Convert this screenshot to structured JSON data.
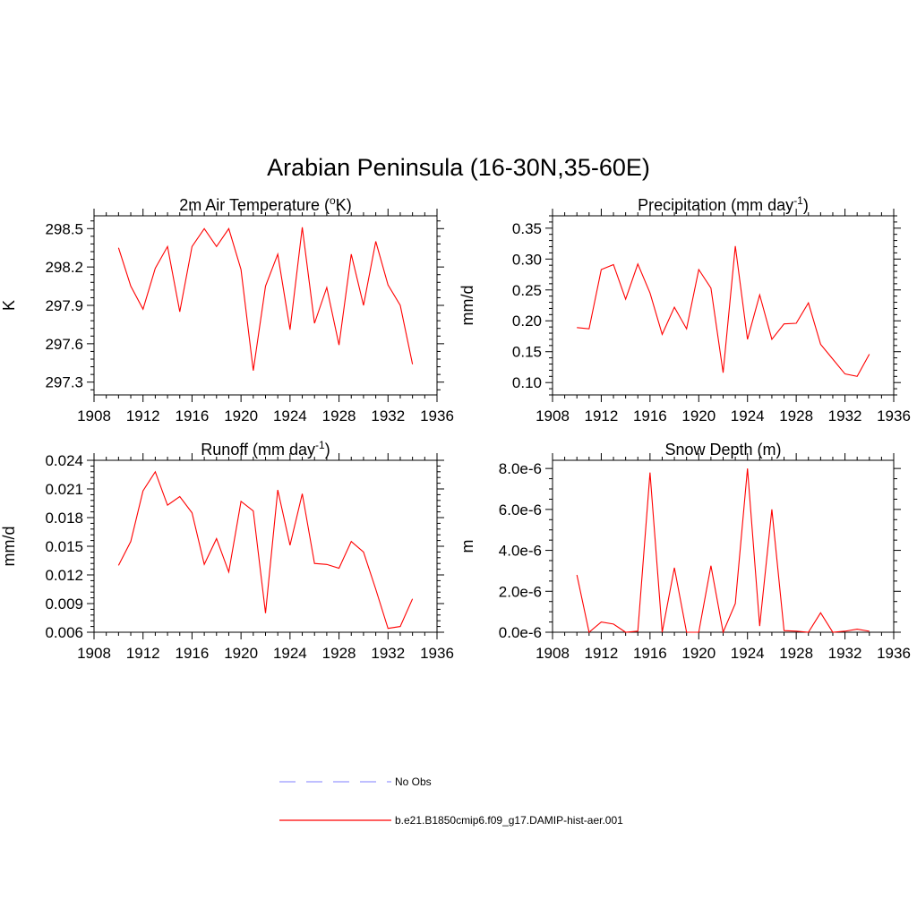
{
  "figure": {
    "title": "Arabian Peninsula (16-30N,35-60E)"
  },
  "legend": [
    {
      "label": "No Obs",
      "color": "#9999ff",
      "dash": true
    },
    {
      "label": "b.e21.B1850cmip6.f09_g17.DAMIP-hist-aer.001",
      "color": "#ff0000",
      "dash": false
    }
  ],
  "chart_data": [
    {
      "type": "line",
      "title_main": "2m Air Temperature (",
      "title_sup": "o",
      "title_end": "K)",
      "ylabel": "K",
      "xlim": [
        1908,
        1936
      ],
      "ylim": [
        297.2,
        298.6
      ],
      "xticks": [
        1908,
        1912,
        1916,
        1920,
        1924,
        1928,
        1932,
        1936
      ],
      "yticks": [
        297.3,
        297.6,
        297.9,
        298.2,
        298.5
      ],
      "ytick_labels": [
        "297.3",
        "297.6",
        "297.9",
        "298.2",
        "298.5"
      ],
      "yminor": 5,
      "color": "#ff0000",
      "x": [
        1910,
        1911,
        1912,
        1913,
        1914,
        1915,
        1916,
        1917,
        1918,
        1919,
        1920,
        1921,
        1922,
        1923,
        1924,
        1925,
        1926,
        1927,
        1928,
        1929,
        1930,
        1931,
        1932,
        1933,
        1934
      ],
      "y": [
        298.35,
        298.05,
        297.87,
        298.19,
        298.36,
        297.85,
        298.36,
        298.5,
        298.36,
        298.5,
        298.18,
        297.39,
        298.05,
        298.3,
        297.71,
        298.51,
        297.76,
        298.04,
        297.59,
        298.3,
        297.9,
        298.4,
        298.06,
        297.9,
        297.44
      ]
    },
    {
      "type": "line",
      "title_main": "Precipitation (mm day",
      "title_sup": "-1",
      "title_end": ")",
      "ylabel": "mm/d",
      "xlim": [
        1908,
        1936
      ],
      "ylim": [
        0.08,
        0.37
      ],
      "xticks": [
        1908,
        1912,
        1916,
        1920,
        1924,
        1928,
        1932,
        1936
      ],
      "yticks": [
        0.1,
        0.15,
        0.2,
        0.25,
        0.3,
        0.35
      ],
      "ytick_labels": [
        "0.10",
        "0.15",
        "0.20",
        "0.25",
        "0.30",
        "0.35"
      ],
      "yminor": 5,
      "color": "#ff0000",
      "x": [
        1910,
        1911,
        1912,
        1913,
        1914,
        1915,
        1916,
        1917,
        1918,
        1919,
        1920,
        1921,
        1922,
        1923,
        1924,
        1925,
        1926,
        1927,
        1928,
        1929,
        1930,
        1931,
        1932,
        1933,
        1934
      ],
      "y": [
        0.189,
        0.187,
        0.283,
        0.291,
        0.235,
        0.292,
        0.245,
        0.178,
        0.222,
        0.187,
        0.283,
        0.253,
        0.116,
        0.321,
        0.17,
        0.242,
        0.17,
        0.195,
        0.196,
        0.229,
        0.162,
        0.138,
        0.114,
        0.11,
        0.146
      ]
    },
    {
      "type": "line",
      "title_main": "Runoff (mm day",
      "title_sup": "-1",
      "title_end": ")",
      "ylabel": "mm/d",
      "xlim": [
        1908,
        1936
      ],
      "ylim": [
        0.006,
        0.024
      ],
      "xticks": [
        1908,
        1912,
        1916,
        1920,
        1924,
        1928,
        1932,
        1936
      ],
      "yticks": [
        0.006,
        0.009,
        0.012,
        0.015,
        0.018,
        0.021,
        0.024
      ],
      "ytick_labels": [
        "0.006",
        "0.009",
        "0.012",
        "0.015",
        "0.018",
        "0.021",
        "0.024"
      ],
      "yminor": 5,
      "color": "#ff0000",
      "x": [
        1910,
        1911,
        1912,
        1913,
        1914,
        1915,
        1916,
        1917,
        1918,
        1919,
        1920,
        1921,
        1922,
        1923,
        1924,
        1925,
        1926,
        1927,
        1928,
        1929,
        1930,
        1931,
        1932,
        1933,
        1934
      ],
      "y": [
        0.013,
        0.0155,
        0.0208,
        0.0228,
        0.0193,
        0.0202,
        0.0185,
        0.0131,
        0.0158,
        0.0123,
        0.0197,
        0.0187,
        0.008,
        0.0209,
        0.0151,
        0.0205,
        0.0132,
        0.0131,
        0.0127,
        0.0155,
        0.0144,
        0.0105,
        0.0064,
        0.0066,
        0.0095
      ]
    },
    {
      "type": "line",
      "title_main": "Snow Depth (m)",
      "title_sup": "",
      "title_end": "",
      "ylabel": "m",
      "xlim": [
        1908,
        1936
      ],
      "ylim": [
        0,
        8.4e-06
      ],
      "xticks": [
        1908,
        1912,
        1916,
        1920,
        1924,
        1928,
        1932,
        1936
      ],
      "yticks": [
        0,
        2e-06,
        4e-06,
        6e-06,
        8e-06
      ],
      "ytick_labels": [
        "0.0e-6",
        "2.0e-6",
        "4.0e-6",
        "6.0e-6",
        "8.0e-6"
      ],
      "yminor": 4,
      "color": "#ff0000",
      "x": [
        1910,
        1911,
        1912,
        1913,
        1914,
        1915,
        1916,
        1917,
        1918,
        1919,
        1920,
        1921,
        1922,
        1923,
        1924,
        1925,
        1926,
        1927,
        1928,
        1929,
        1930,
        1931,
        1932,
        1933,
        1934
      ],
      "y": [
        2.8e-06,
        0,
        5e-07,
        4e-07,
        0,
        5e-08,
        7.8e-06,
        0,
        3.15e-06,
        0,
        0,
        3.25e-06,
        0,
        1.4e-06,
        8e-06,
        3e-07,
        6e-06,
        8e-08,
        5e-08,
        0,
        9.5e-07,
        0,
        5e-08,
        1.5e-07,
        5e-08
      ]
    }
  ]
}
